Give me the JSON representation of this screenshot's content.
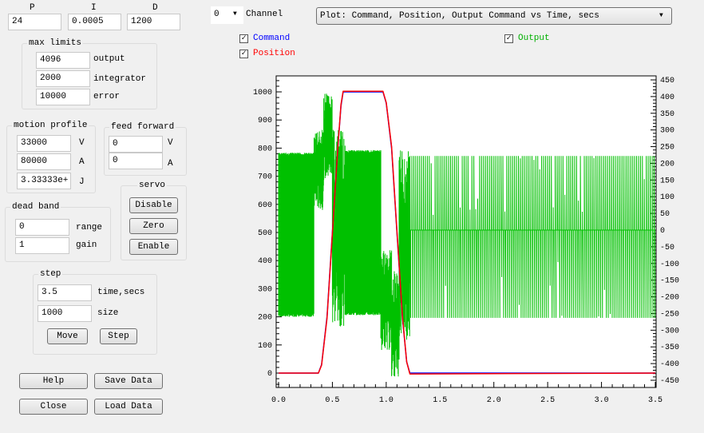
{
  "pid": {
    "labels": [
      "P",
      "I",
      "D"
    ],
    "values": [
      "24",
      "0.0005",
      "1200"
    ]
  },
  "max_limits": {
    "title": "max limits",
    "fields": [
      {
        "value": "4096",
        "label": "output"
      },
      {
        "value": "2000",
        "label": "integrator"
      },
      {
        "value": "10000",
        "label": "error"
      }
    ]
  },
  "motion_profile": {
    "title": "motion profile",
    "fields": [
      {
        "value": "33000",
        "label": "V"
      },
      {
        "value": "80000",
        "label": "A"
      },
      {
        "value": "3.33333e+",
        "label": "J"
      }
    ]
  },
  "feed_forward": {
    "title": "feed forward",
    "fields": [
      {
        "value": "0",
        "label": "V"
      },
      {
        "value": "0",
        "label": "A"
      }
    ]
  },
  "servo": {
    "title": "servo",
    "buttons": [
      "Disable",
      "Zero",
      "Enable"
    ]
  },
  "dead_band": {
    "title": "dead band",
    "fields": [
      {
        "value": "0",
        "label": "range"
      },
      {
        "value": "1",
        "label": "gain"
      }
    ]
  },
  "step": {
    "title": "step",
    "fields": [
      {
        "value": "3.5",
        "label": "time,secs"
      },
      {
        "value": "1000",
        "label": "size"
      }
    ],
    "buttons": [
      "Move",
      "Step"
    ]
  },
  "bottom_buttons": [
    "Help",
    "Save Data",
    "Close",
    "Load Data"
  ],
  "channel": {
    "value": "0",
    "label": "Channel"
  },
  "plot_select": {
    "value": "Plot: Command, Position, Output Command vs Time, secs"
  },
  "checkboxes": [
    {
      "label": "Command",
      "checked": true,
      "color": "#0000ff"
    },
    {
      "label": "Position",
      "checked": true,
      "color": "#ff0000"
    },
    {
      "label": "Output",
      "checked": true,
      "color": "#00c000"
    }
  ],
  "icons": {
    "dropdown": "triangle-down-icon",
    "check": "checkmark-icon"
  },
  "chart_data": {
    "type": "line",
    "xlim": [
      0,
      3.5
    ],
    "x_ticks": [
      "0.0",
      "0.5",
      "1.0",
      "1.5",
      "2.0",
      "2.5",
      "3.0",
      "3.5"
    ],
    "ylim_left": [
      -50,
      1060
    ],
    "y_ticks_left": [
      "0",
      "100",
      "200",
      "300",
      "400",
      "500",
      "600",
      "700",
      "800",
      "900",
      "1000"
    ],
    "ylim_right": [
      -450,
      450
    ],
    "y_ticks_right": [
      "-450",
      "-400",
      "-350",
      "-300",
      "-250",
      "-200",
      "-150",
      "-100",
      "-50",
      "0",
      "50",
      "100",
      "150",
      "200",
      "250",
      "300",
      "350",
      "400",
      "450"
    ],
    "grid": false,
    "series": [
      {
        "name": "Command",
        "axis": "left",
        "color": "#0000ff",
        "points": [
          [
            0,
            0
          ],
          [
            0.37,
            0
          ],
          [
            0.4,
            30
          ],
          [
            0.45,
            200
          ],
          [
            0.5,
            500
          ],
          [
            0.55,
            800
          ],
          [
            0.58,
            950
          ],
          [
            0.6,
            1000
          ],
          [
            0.97,
            1000
          ],
          [
            1.0,
            960
          ],
          [
            1.05,
            800
          ],
          [
            1.1,
            500
          ],
          [
            1.15,
            200
          ],
          [
            1.19,
            40
          ],
          [
            1.22,
            0
          ],
          [
            3.5,
            0
          ]
        ]
      },
      {
        "name": "Position",
        "axis": "left",
        "color": "#ff0000",
        "points": [
          [
            0,
            0
          ],
          [
            0.37,
            0
          ],
          [
            0.4,
            28
          ],
          [
            0.45,
            195
          ],
          [
            0.5,
            495
          ],
          [
            0.55,
            800
          ],
          [
            0.58,
            955
          ],
          [
            0.6,
            1002
          ],
          [
            0.97,
            1002
          ],
          [
            1.0,
            962
          ],
          [
            1.05,
            805
          ],
          [
            1.1,
            505
          ],
          [
            1.15,
            205
          ],
          [
            1.19,
            40
          ],
          [
            1.22,
            -3
          ],
          [
            3.5,
            0
          ]
        ]
      },
      {
        "name": "Output",
        "axis": "right",
        "color": "#00c000",
        "envelope": [
          {
            "t": [
              0.0,
              0.33
            ],
            "min": -260,
            "max": 232
          },
          {
            "t": [
              0.33,
              0.42
            ],
            "min": 60,
            "max": 300
          },
          {
            "t": [
              0.42,
              0.5
            ],
            "min": 150,
            "max": 410
          },
          {
            "t": [
              0.5,
              0.62
            ],
            "min": -290,
            "max": 300
          },
          {
            "t": [
              0.62,
              0.95
            ],
            "min": -255,
            "max": 240
          },
          {
            "t": [
              0.95,
              1.05
            ],
            "min": -360,
            "max": -60
          },
          {
            "t": [
              1.05,
              1.12
            ],
            "min": -440,
            "max": -120
          },
          {
            "t": [
              1.12,
              1.22
            ],
            "min": -330,
            "max": 240
          },
          {
            "t": [
              1.22,
              3.5
            ],
            "min": -263,
            "max": 222
          }
        ]
      }
    ]
  }
}
